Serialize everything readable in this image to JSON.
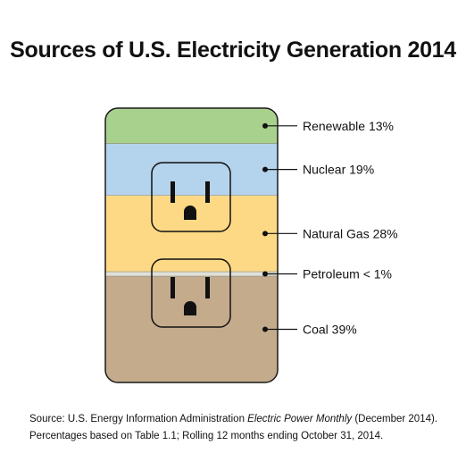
{
  "chart_data": {
    "type": "bar",
    "title": "Sources of U.S. Electricity Generation 2014",
    "categories": [
      "Renewable",
      "Nuclear",
      "Natural Gas",
      "Petroleum",
      "Coal"
    ],
    "values": [
      13,
      19,
      28,
      1,
      39
    ],
    "labels": [
      "Renewable 13%",
      "Nuclear 19%",
      "Natural Gas 28%",
      "Petroleum < 1%",
      "Coal 39%"
    ],
    "colors": [
      "#a9d18e",
      "#b4d3ec",
      "#fed985",
      "#e0e0d6",
      "#c4ab8c"
    ],
    "stacked": true,
    "orientation": "vertical"
  },
  "footer": {
    "source_prefix": "Source: U.S. Energy Information Administration ",
    "source_publication": "Electric Power Monthly",
    "source_suffix": " (December 2014).",
    "note": "Percentages based on Table 1.1; Rolling 12 months ending October 31, 2014."
  }
}
